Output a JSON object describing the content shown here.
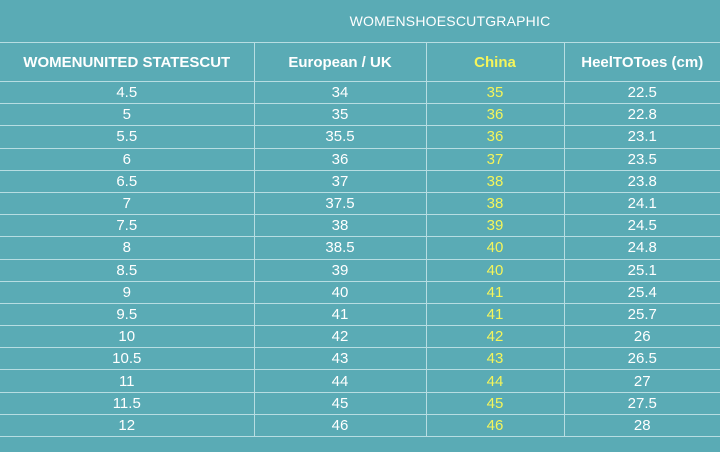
{
  "caption": "WOMENSHOESCUTGRAPHIC",
  "headers": [
    "WOMENUNITED STATESCUT",
    "European / UK",
    "China",
    "HeelTOToes (cm)"
  ],
  "colors": {
    "background": "#5aabb5",
    "text": "#ffffff",
    "china_accent": "#f5f55a",
    "grid": "#b7dde2"
  },
  "rows": [
    [
      "4.5",
      "34",
      "35",
      "22.5"
    ],
    [
      "5",
      "35",
      "36",
      "22.8"
    ],
    [
      "5.5",
      "35.5",
      "36",
      "23.1"
    ],
    [
      "6",
      "36",
      "37",
      "23.5"
    ],
    [
      "6.5",
      "37",
      "38",
      "23.8"
    ],
    [
      "7",
      "37.5",
      "38",
      "24.1"
    ],
    [
      "7.5",
      "38",
      "39",
      "24.5"
    ],
    [
      "8",
      "38.5",
      "40",
      "24.8"
    ],
    [
      "8.5",
      "39",
      "40",
      "25.1"
    ],
    [
      "9",
      "40",
      "41",
      "25.4"
    ],
    [
      "9.5",
      "41",
      "41",
      "25.7"
    ],
    [
      "10",
      "42",
      "42",
      "26"
    ],
    [
      "10.5",
      "43",
      "43",
      "26.5"
    ],
    [
      "11",
      "44",
      "44",
      "27"
    ],
    [
      "11.5",
      "45",
      "45",
      "27.5"
    ],
    [
      "12",
      "46",
      "46",
      "28"
    ]
  ]
}
